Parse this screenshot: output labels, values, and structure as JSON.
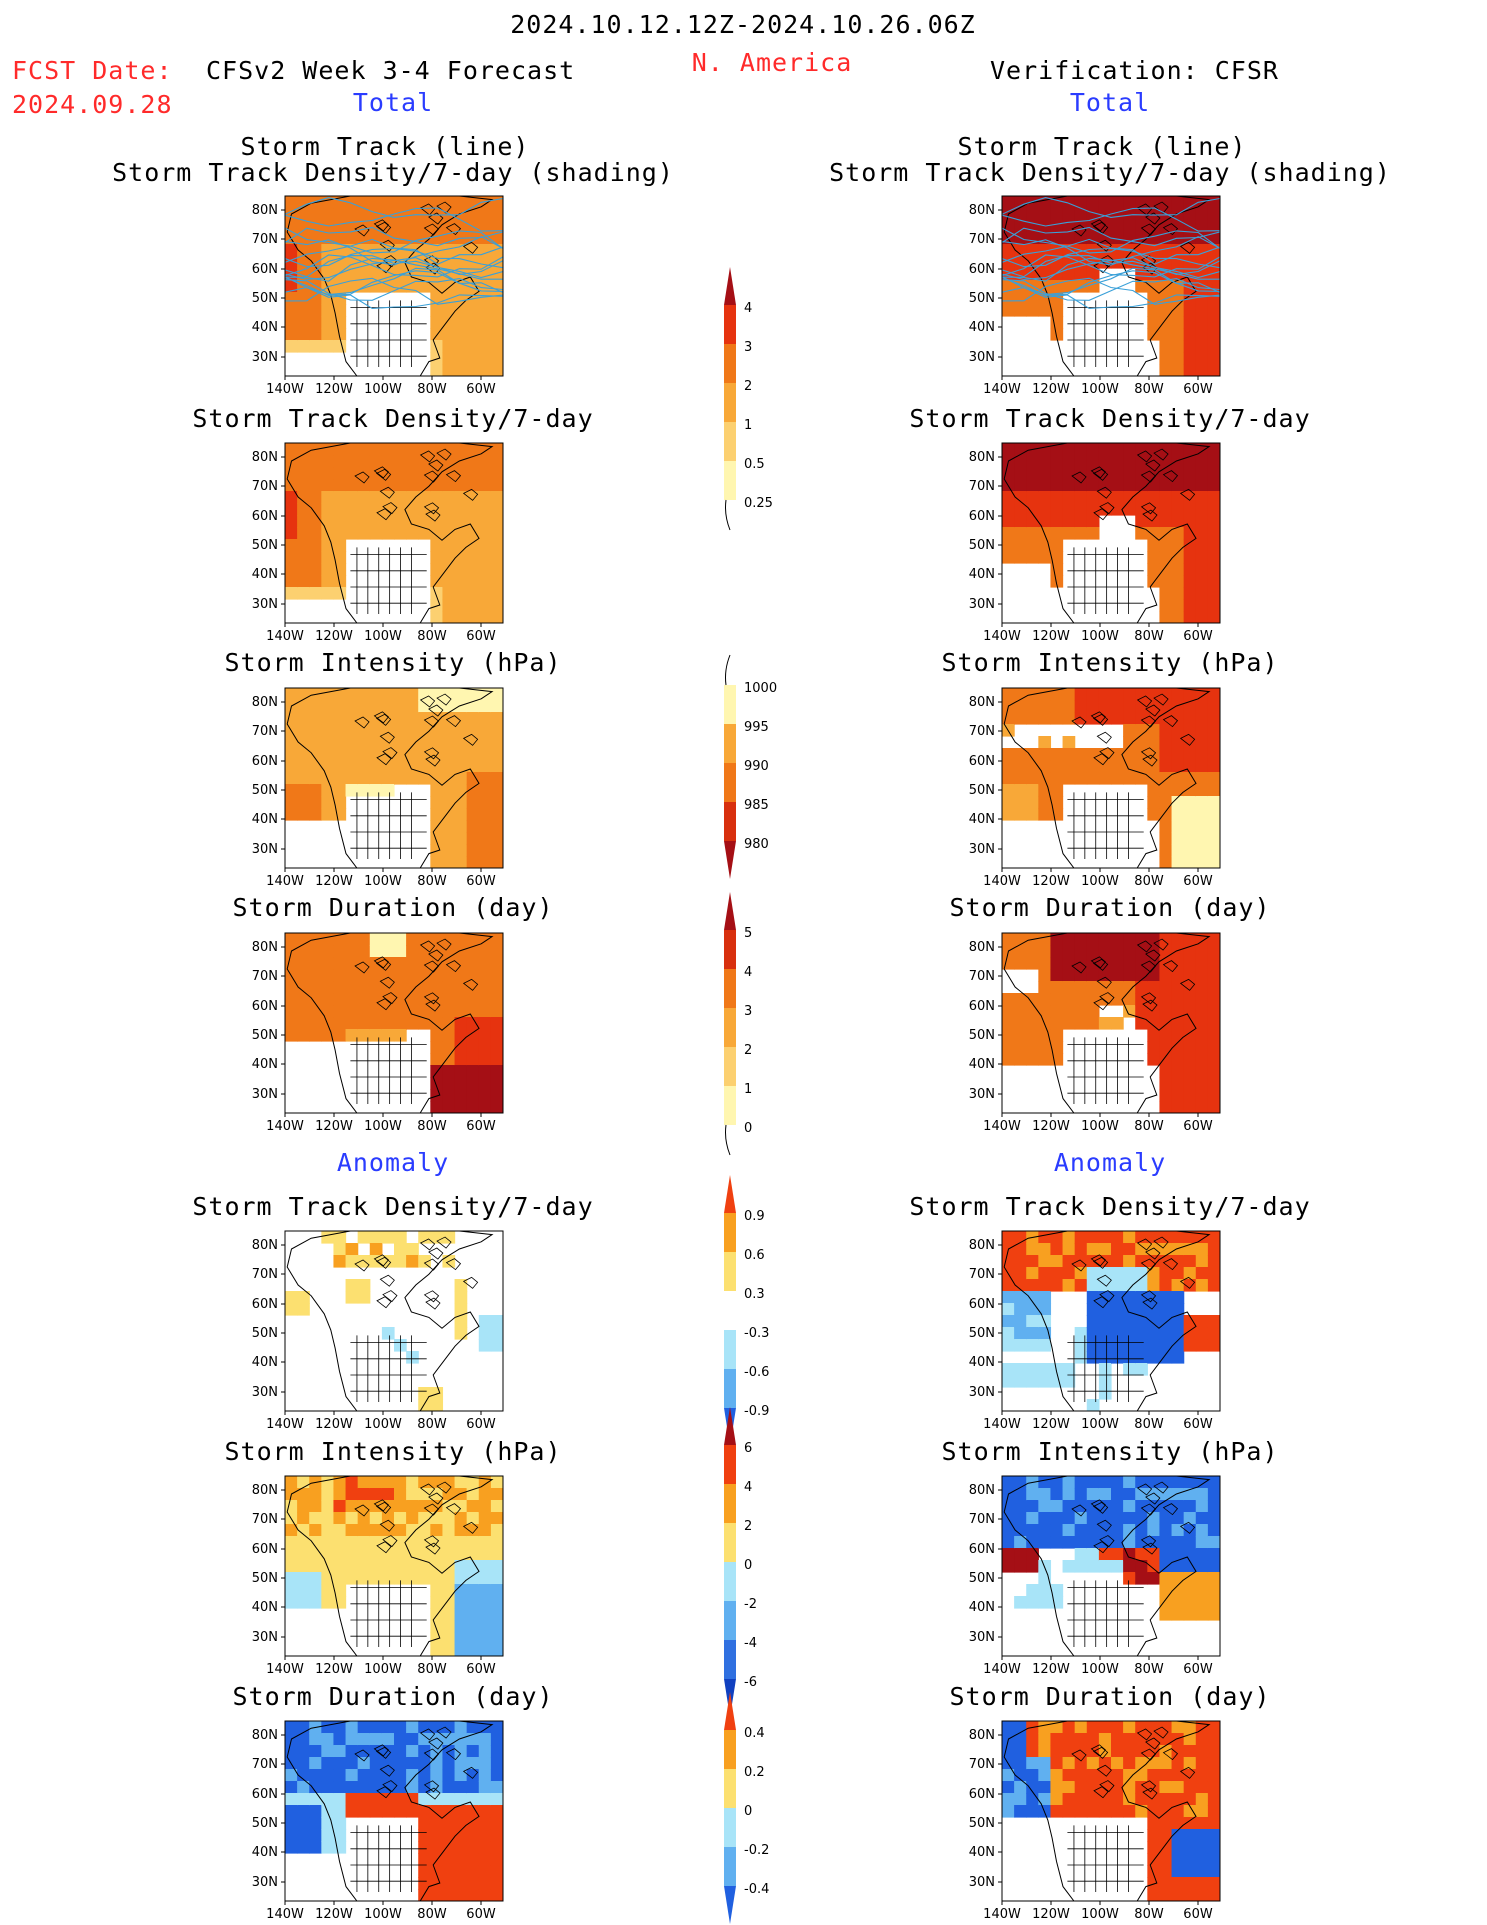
{
  "header": {
    "date_range": "2024.10.12.12Z-2024.10.26.06Z",
    "region": "N. America",
    "fcst_label": "FCST Date:",
    "fcst_date": "2024.09.28",
    "model_title": "CFSv2 Week 3-4 Forecast",
    "verification_title": "Verification: CFSR"
  },
  "sections": {
    "total": "Total",
    "anomaly": "Anomaly"
  },
  "axes": {
    "lat_labels": [
      "80N",
      "70N",
      "60N",
      "50N",
      "40N",
      "30N"
    ],
    "lon_labels": [
      "140W",
      "120W",
      "100W",
      "80W",
      "60W"
    ]
  },
  "panel_titles": {
    "storm_track_line": "Storm Track (line)",
    "storm_track_shading": "Storm Track Density/7-day (shading)",
    "density": "Storm Track Density/7-day",
    "intensity": "Storm Intensity (hPa)",
    "duration": "Storm Duration (day)"
  },
  "colorbars": [
    {
      "id": "density_total",
      "labels": [
        "4",
        "3",
        "2",
        "1",
        "0.5",
        "0.25"
      ],
      "colors": [
        "#a50f15",
        "#e6330f",
        "#f07818",
        "#f8a838",
        "#fcd070",
        "#fff6b0"
      ]
    },
    {
      "id": "intensity_total",
      "labels": [
        "1000",
        "995",
        "990",
        "985",
        "980"
      ],
      "colors": [
        "#fff6b0",
        "#f8a838",
        "#f07818",
        "#d8300e",
        "#a50f15"
      ]
    },
    {
      "id": "duration_total",
      "labels": [
        "5",
        "4",
        "3",
        "2",
        "1",
        "0"
      ],
      "colors": [
        "#a50f15",
        "#d8300e",
        "#f07818",
        "#f8a838",
        "#fcd070",
        "#fff6b0"
      ]
    },
    {
      "id": "density_anom",
      "labels": [
        "0.9",
        "0.6",
        "0.3",
        "-0.3",
        "-0.6",
        "-0.9"
      ],
      "colors": [
        "#f04010",
        "#f8a020",
        "#fce070",
        "#ffffff",
        "#a8e4f8",
        "#60b0f0",
        "#2060e0"
      ]
    },
    {
      "id": "intensity_anom",
      "labels": [
        "6",
        "4",
        "2",
        "0",
        "-2",
        "-4",
        "-6"
      ],
      "colors": [
        "#a50f15",
        "#f04010",
        "#f8a020",
        "#fce070",
        "#a8e4f8",
        "#60b0f0",
        "#3070e0",
        "#1040c0"
      ]
    },
    {
      "id": "duration_anom",
      "labels": [
        "0.4",
        "0.2",
        "0",
        "-0.2",
        "-0.4"
      ],
      "colors": [
        "#f04010",
        "#f8a020",
        "#fce070",
        "#a8e4f8",
        "#60b0f0",
        "#2060e0"
      ]
    }
  ],
  "panels": [
    {
      "id": "fc_track",
      "title_key": "storm_track_shading",
      "field": "density",
      "track_lines": true,
      "pattern": "fc_density"
    },
    {
      "id": "ob_track",
      "title_key": "storm_track_shading",
      "field": "density",
      "track_lines": true,
      "pattern": "ob_density"
    },
    {
      "id": "fc_density",
      "title_key": "density",
      "pattern": "fc_density"
    },
    {
      "id": "ob_density",
      "title_key": "density",
      "pattern": "ob_density"
    },
    {
      "id": "fc_intensity",
      "title_key": "intensity",
      "pattern": "fc_intensity"
    },
    {
      "id": "ob_intensity",
      "title_key": "intensity",
      "pattern": "ob_intensity"
    },
    {
      "id": "fc_duration",
      "title_key": "duration",
      "pattern": "fc_duration"
    },
    {
      "id": "ob_duration",
      "title_key": "duration",
      "pattern": "ob_duration"
    },
    {
      "id": "fc_density_anom",
      "title_key": "density",
      "pattern": "fc_density_anom"
    },
    {
      "id": "ob_density_anom",
      "title_key": "density",
      "pattern": "ob_density_anom"
    },
    {
      "id": "fc_intensity_anom",
      "title_key": "intensity",
      "pattern": "fc_intensity_anom"
    },
    {
      "id": "ob_intensity_anom",
      "title_key": "intensity",
      "pattern": "ob_intensity_anom"
    },
    {
      "id": "fc_duration_anom",
      "title_key": "duration",
      "pattern": "fc_duration_anom"
    },
    {
      "id": "ob_duration_anom",
      "title_key": "duration",
      "pattern": "ob_duration_anom"
    }
  ]
}
